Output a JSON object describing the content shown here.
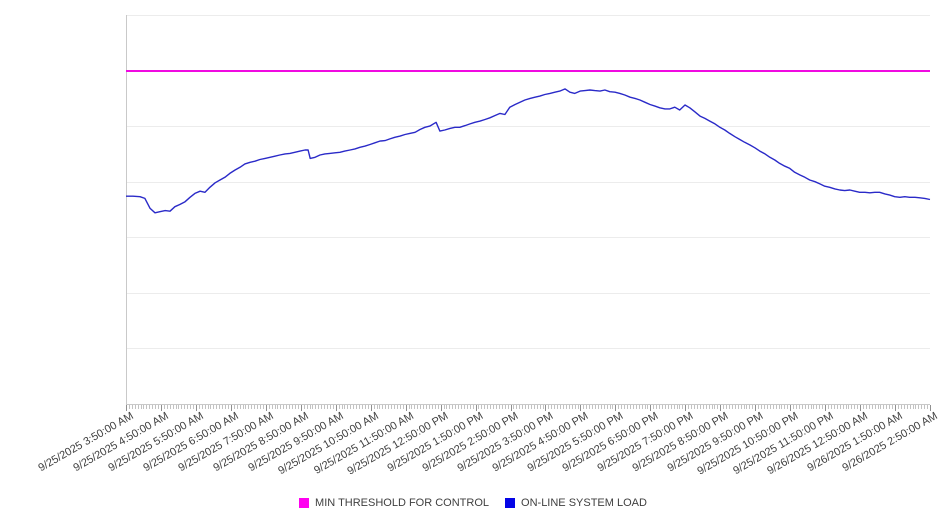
{
  "page": {
    "background": "#ffffff"
  },
  "colors": {
    "gridline": "#ececec",
    "axis_line": "#c9c9c9",
    "minor_tick": "#c2c2c2",
    "major_tick": "#8f8f8f",
    "label_text": "#404040"
  },
  "legend": {
    "items": [
      {
        "label": "MIN THRESHOLD FOR CONTROL",
        "swatch_color": "#ff00f0"
      },
      {
        "label": "ON-LINE SYSTEM LOAD",
        "swatch_color": "#0505e6"
      }
    ]
  },
  "chart_data": {
    "type": "line",
    "title": "",
    "xlabel": "",
    "ylabel": "",
    "legend_position": "bottom-center",
    "grid": "horizontal",
    "y_axis": {
      "labels_shown": false,
      "ylim": [
        0,
        7
      ],
      "gridline_count": 8,
      "units_note": "y axis has no tick labels; values estimated in gridline units 0-7"
    },
    "x_axis": {
      "hours_span": 23,
      "minor_ticks_per_hour": 12,
      "minor_tick_interval_minutes": 5,
      "labels": [
        "9/25/2025 3:50:00 AM",
        "9/25/2025 4:50:00 AM",
        "9/25/2025 5:50:00 AM",
        "9/25/2025 6:50:00 AM",
        "9/25/2025 7:50:00 AM",
        "9/25/2025 8:50:00 AM",
        "9/25/2025 9:50:00 AM",
        "9/25/2025 10:50:00 AM",
        "9/25/2025 11:50:00 AM",
        "9/25/2025 12:50:00 PM",
        "9/25/2025 1:50:00 PM",
        "9/25/2025 2:50:00 PM",
        "9/25/2025 3:50:00 PM",
        "9/25/2025 4:50:00 PM",
        "9/25/2025 5:50:00 PM",
        "9/25/2025 6:50:00 PM",
        "9/25/2025 7:50:00 PM",
        "9/25/2025 8:50:00 PM",
        "9/25/2025 9:50:00 PM",
        "9/25/2025 10:50:00 PM",
        "9/25/2025 11:50:00 PM",
        "9/26/2025 12:50:00 AM",
        "9/26/2025 1:50:00 AM",
        "9/26/2025 2:50:00 AM"
      ]
    },
    "series": [
      {
        "name": "MIN THRESHOLD FOR CONTROL",
        "type": "threshold",
        "color": "#f00ae1",
        "value": 6.0
      },
      {
        "name": "ON-LINE SYSTEM LOAD",
        "type": "line",
        "color": "#2a2ac8",
        "x_units": "hours after 9/25/2025 3:50:00 AM",
        "points": [
          [
            0,
            3.74
          ],
          [
            0.2,
            3.74
          ],
          [
            0.4,
            3.73
          ],
          [
            0.54,
            3.7
          ],
          [
            0.69,
            3.52
          ],
          [
            0.83,
            3.44
          ],
          [
            0.97,
            3.46
          ],
          [
            1.12,
            3.48
          ],
          [
            1.26,
            3.47
          ],
          [
            1.4,
            3.55
          ],
          [
            1.54,
            3.59
          ],
          [
            1.69,
            3.64
          ],
          [
            1.83,
            3.72
          ],
          [
            1.97,
            3.79
          ],
          [
            2.12,
            3.83
          ],
          [
            2.26,
            3.81
          ],
          [
            2.4,
            3.9
          ],
          [
            2.55,
            3.98
          ],
          [
            2.69,
            4.03
          ],
          [
            2.83,
            4.08
          ],
          [
            2.97,
            4.15
          ],
          [
            3.12,
            4.21
          ],
          [
            3.26,
            4.26
          ],
          [
            3.4,
            4.32
          ],
          [
            3.55,
            4.35
          ],
          [
            3.69,
            4.37
          ],
          [
            3.83,
            4.4
          ],
          [
            3.98,
            4.42
          ],
          [
            4.12,
            4.44
          ],
          [
            4.26,
            4.46
          ],
          [
            4.4,
            4.48
          ],
          [
            4.55,
            4.5
          ],
          [
            4.69,
            4.51
          ],
          [
            4.83,
            4.53
          ],
          [
            4.98,
            4.55
          ],
          [
            5.12,
            4.57
          ],
          [
            5.21,
            4.57
          ],
          [
            5.27,
            4.42
          ],
          [
            5.41,
            4.44
          ],
          [
            5.55,
            4.48
          ],
          [
            5.69,
            4.5
          ],
          [
            5.83,
            4.51
          ],
          [
            5.98,
            4.52
          ],
          [
            6.12,
            4.53
          ],
          [
            6.26,
            4.55
          ],
          [
            6.41,
            4.57
          ],
          [
            6.55,
            4.59
          ],
          [
            6.69,
            4.62
          ],
          [
            6.84,
            4.64
          ],
          [
            6.98,
            4.67
          ],
          [
            7.12,
            4.7
          ],
          [
            7.26,
            4.73
          ],
          [
            7.41,
            4.74
          ],
          [
            7.55,
            4.77
          ],
          [
            7.69,
            4.8
          ],
          [
            7.84,
            4.82
          ],
          [
            7.98,
            4.85
          ],
          [
            8.12,
            4.87
          ],
          [
            8.27,
            4.89
          ],
          [
            8.41,
            4.94
          ],
          [
            8.55,
            4.98
          ],
          [
            8.69,
            5.0
          ],
          [
            8.87,
            5.07
          ],
          [
            8.98,
            4.91
          ],
          [
            9.12,
            4.93
          ],
          [
            9.27,
            4.96
          ],
          [
            9.41,
            4.98
          ],
          [
            9.55,
            4.98
          ],
          [
            9.7,
            5.01
          ],
          [
            9.84,
            5.04
          ],
          [
            9.98,
            5.07
          ],
          [
            10.13,
            5.09
          ],
          [
            10.27,
            5.12
          ],
          [
            10.41,
            5.15
          ],
          [
            10.55,
            5.19
          ],
          [
            10.7,
            5.23
          ],
          [
            10.84,
            5.21
          ],
          [
            10.98,
            5.34
          ],
          [
            11.13,
            5.39
          ],
          [
            11.27,
            5.43
          ],
          [
            11.41,
            5.47
          ],
          [
            11.56,
            5.5
          ],
          [
            11.7,
            5.52
          ],
          [
            11.84,
            5.54
          ],
          [
            11.98,
            5.57
          ],
          [
            12.13,
            5.59
          ],
          [
            12.27,
            5.61
          ],
          [
            12.41,
            5.63
          ],
          [
            12.56,
            5.67
          ],
          [
            12.7,
            5.61
          ],
          [
            12.84,
            5.59
          ],
          [
            12.99,
            5.63
          ],
          [
            13.13,
            5.64
          ],
          [
            13.27,
            5.65
          ],
          [
            13.41,
            5.64
          ],
          [
            13.56,
            5.63
          ],
          [
            13.7,
            5.65
          ],
          [
            13.84,
            5.62
          ],
          [
            13.99,
            5.61
          ],
          [
            14.13,
            5.59
          ],
          [
            14.27,
            5.56
          ],
          [
            14.42,
            5.52
          ],
          [
            14.56,
            5.5
          ],
          [
            14.7,
            5.47
          ],
          [
            14.84,
            5.43
          ],
          [
            14.99,
            5.39
          ],
          [
            15.13,
            5.36
          ],
          [
            15.27,
            5.33
          ],
          [
            15.42,
            5.31
          ],
          [
            15.56,
            5.31
          ],
          [
            15.7,
            5.34
          ],
          [
            15.84,
            5.29
          ],
          [
            15.99,
            5.38
          ],
          [
            16.13,
            5.33
          ],
          [
            16.27,
            5.26
          ],
          [
            16.42,
            5.18
          ],
          [
            16.56,
            5.14
          ],
          [
            16.7,
            5.09
          ],
          [
            16.85,
            5.04
          ],
          [
            16.99,
            4.98
          ],
          [
            17.13,
            4.93
          ],
          [
            17.27,
            4.87
          ],
          [
            17.42,
            4.81
          ],
          [
            17.56,
            4.76
          ],
          [
            17.7,
            4.71
          ],
          [
            17.85,
            4.66
          ],
          [
            17.99,
            4.61
          ],
          [
            18.13,
            4.55
          ],
          [
            18.28,
            4.5
          ],
          [
            18.42,
            4.44
          ],
          [
            18.56,
            4.39
          ],
          [
            18.7,
            4.33
          ],
          [
            18.85,
            4.28
          ],
          [
            18.99,
            4.24
          ],
          [
            19.13,
            4.17
          ],
          [
            19.28,
            4.12
          ],
          [
            19.42,
            4.08
          ],
          [
            19.56,
            4.03
          ],
          [
            19.71,
            4.0
          ],
          [
            19.85,
            3.96
          ],
          [
            19.99,
            3.92
          ],
          [
            20.13,
            3.9
          ],
          [
            20.28,
            3.87
          ],
          [
            20.42,
            3.85
          ],
          [
            20.56,
            3.84
          ],
          [
            20.71,
            3.85
          ],
          [
            20.85,
            3.83
          ],
          [
            20.99,
            3.81
          ],
          [
            21.14,
            3.81
          ],
          [
            21.28,
            3.8
          ],
          [
            21.42,
            3.81
          ],
          [
            21.56,
            3.81
          ],
          [
            21.71,
            3.78
          ],
          [
            21.85,
            3.76
          ],
          [
            21.99,
            3.73
          ],
          [
            22.14,
            3.72
          ],
          [
            22.28,
            3.73
          ],
          [
            22.42,
            3.72
          ],
          [
            22.57,
            3.72
          ],
          [
            22.71,
            3.71
          ],
          [
            22.85,
            3.7
          ],
          [
            23,
            3.68
          ]
        ]
      }
    ]
  }
}
